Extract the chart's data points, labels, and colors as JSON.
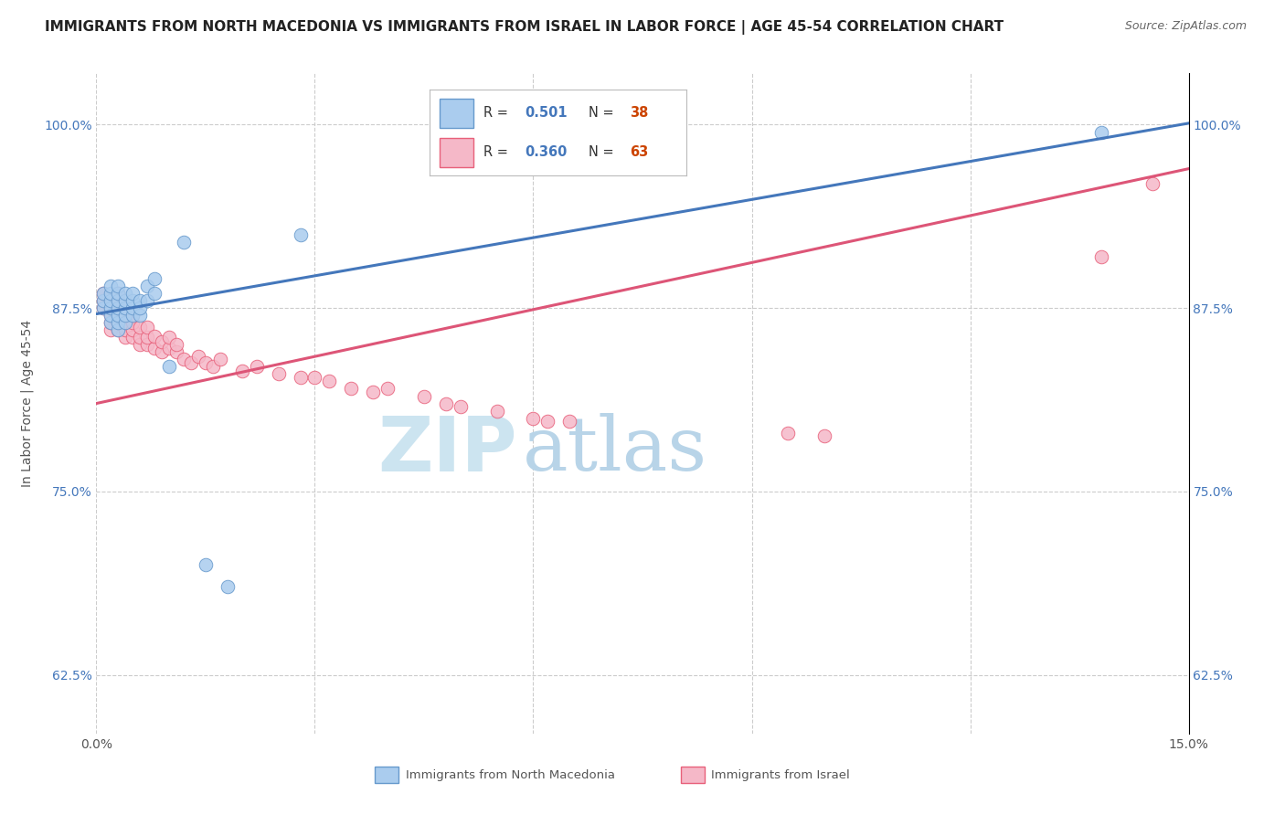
{
  "title": "IMMIGRANTS FROM NORTH MACEDONIA VS IMMIGRANTS FROM ISRAEL IN LABOR FORCE | AGE 45-54 CORRELATION CHART",
  "source": "Source: ZipAtlas.com",
  "ylabel": "In Labor Force | Age 45-54",
  "watermark_zip": "ZIP",
  "watermark_atlas": "atlas",
  "xlim": [
    0.0,
    0.15
  ],
  "ylim": [
    0.585,
    1.035
  ],
  "xticks": [
    0.0,
    0.03,
    0.06,
    0.09,
    0.12,
    0.15
  ],
  "xticklabels": [
    "0.0%",
    "",
    "",
    "",
    "",
    "15.0%"
  ],
  "yticks": [
    0.625,
    0.75,
    0.875,
    1.0
  ],
  "yticklabels": [
    "62.5%",
    "75.0%",
    "87.5%",
    "100.0%"
  ],
  "legend_labels": [
    "Immigrants from North Macedonia",
    "Immigrants from Israel"
  ],
  "blue_color": "#aaccee",
  "pink_color": "#f5b8c8",
  "blue_edge_color": "#6699cc",
  "pink_edge_color": "#e8607a",
  "blue_line_color": "#4477bb",
  "pink_line_color": "#dd5577",
  "title_fontsize": 11,
  "source_fontsize": 9,
  "axis_fontsize": 10,
  "tick_fontsize": 10,
  "watermark_fontsize_zip": 60,
  "watermark_fontsize_atlas": 60,
  "watermark_color": "#cce4f0",
  "background_color": "#ffffff",
  "grid_color": "#cccccc",
  "blue_scatter_x": [
    0.001,
    0.001,
    0.001,
    0.002,
    0.002,
    0.002,
    0.002,
    0.002,
    0.002,
    0.003,
    0.003,
    0.003,
    0.003,
    0.003,
    0.003,
    0.003,
    0.004,
    0.004,
    0.004,
    0.004,
    0.004,
    0.005,
    0.005,
    0.005,
    0.005,
    0.006,
    0.006,
    0.006,
    0.007,
    0.007,
    0.008,
    0.008,
    0.01,
    0.012,
    0.015,
    0.018,
    0.028,
    0.138
  ],
  "blue_scatter_y": [
    0.875,
    0.88,
    0.885,
    0.865,
    0.87,
    0.875,
    0.88,
    0.885,
    0.89,
    0.86,
    0.865,
    0.87,
    0.875,
    0.88,
    0.885,
    0.89,
    0.865,
    0.87,
    0.875,
    0.88,
    0.885,
    0.87,
    0.875,
    0.88,
    0.885,
    0.87,
    0.875,
    0.88,
    0.88,
    0.89,
    0.885,
    0.895,
    0.835,
    0.92,
    0.7,
    0.685,
    0.925,
    0.995
  ],
  "pink_scatter_x": [
    0.001,
    0.001,
    0.001,
    0.002,
    0.002,
    0.002,
    0.002,
    0.002,
    0.003,
    0.003,
    0.003,
    0.003,
    0.003,
    0.003,
    0.004,
    0.004,
    0.004,
    0.004,
    0.004,
    0.005,
    0.005,
    0.005,
    0.005,
    0.006,
    0.006,
    0.006,
    0.007,
    0.007,
    0.007,
    0.008,
    0.008,
    0.009,
    0.009,
    0.01,
    0.01,
    0.011,
    0.011,
    0.012,
    0.013,
    0.014,
    0.015,
    0.016,
    0.017,
    0.02,
    0.022,
    0.025,
    0.028,
    0.03,
    0.032,
    0.035,
    0.038,
    0.04,
    0.045,
    0.048,
    0.05,
    0.055,
    0.06,
    0.062,
    0.065,
    0.095,
    0.1,
    0.138,
    0.145
  ],
  "pink_scatter_y": [
    0.875,
    0.88,
    0.885,
    0.86,
    0.865,
    0.87,
    0.875,
    0.882,
    0.86,
    0.865,
    0.87,
    0.875,
    0.88,
    0.885,
    0.855,
    0.86,
    0.865,
    0.87,
    0.875,
    0.855,
    0.86,
    0.865,
    0.87,
    0.85,
    0.855,
    0.862,
    0.85,
    0.855,
    0.862,
    0.848,
    0.856,
    0.845,
    0.852,
    0.848,
    0.855,
    0.845,
    0.85,
    0.84,
    0.838,
    0.842,
    0.838,
    0.835,
    0.84,
    0.832,
    0.835,
    0.83,
    0.828,
    0.828,
    0.825,
    0.82,
    0.818,
    0.82,
    0.815,
    0.81,
    0.808,
    0.805,
    0.8,
    0.798,
    0.798,
    0.79,
    0.788,
    0.91,
    0.96
  ]
}
